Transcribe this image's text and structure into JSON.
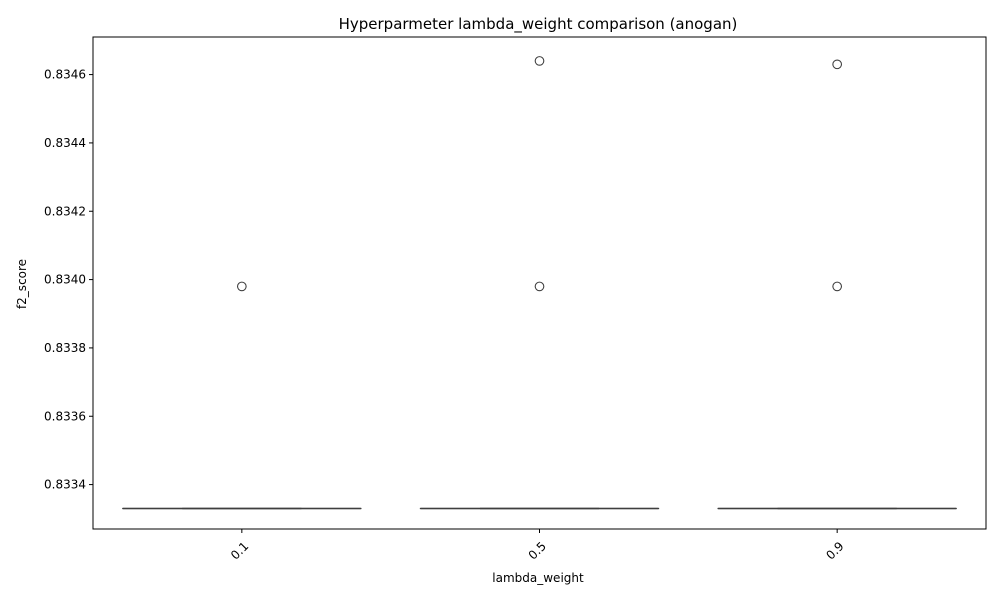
{
  "chart_data": {
    "type": "box",
    "title": "Hyperparmeter lambda_weight comparison (anogan)",
    "xlabel": "lambda_weight",
    "ylabel": "f2_score",
    "categories": [
      "0.1",
      "0.5",
      "0.9"
    ],
    "ylim": [
      0.83327,
      0.83471
    ],
    "yticks": [
      0.8334,
      0.8336,
      0.8338,
      0.834,
      0.8342,
      0.8344,
      0.8346
    ],
    "ytick_labels": [
      "0.8334",
      "0.8336",
      "0.8338",
      "0.8340",
      "0.8342",
      "0.8344",
      "0.8346"
    ],
    "grid": false,
    "x_tick_rotation": -45,
    "box_color": "#3f3f3f",
    "boxes": [
      {
        "category": "0.1",
        "median": 0.83333,
        "q1": 0.83333,
        "q3": 0.83333,
        "whisker_low": 0.83333,
        "whisker_high": 0.83333,
        "outliers": [
          0.83398
        ]
      },
      {
        "category": "0.5",
        "median": 0.83333,
        "q1": 0.83333,
        "q3": 0.83333,
        "whisker_low": 0.83333,
        "whisker_high": 0.83333,
        "outliers": [
          0.83398,
          0.83464
        ]
      },
      {
        "category": "0.9",
        "median": 0.83333,
        "q1": 0.83333,
        "q3": 0.83333,
        "whisker_low": 0.83333,
        "whisker_high": 0.83333,
        "outliers": [
          0.83398,
          0.83463
        ]
      }
    ]
  }
}
